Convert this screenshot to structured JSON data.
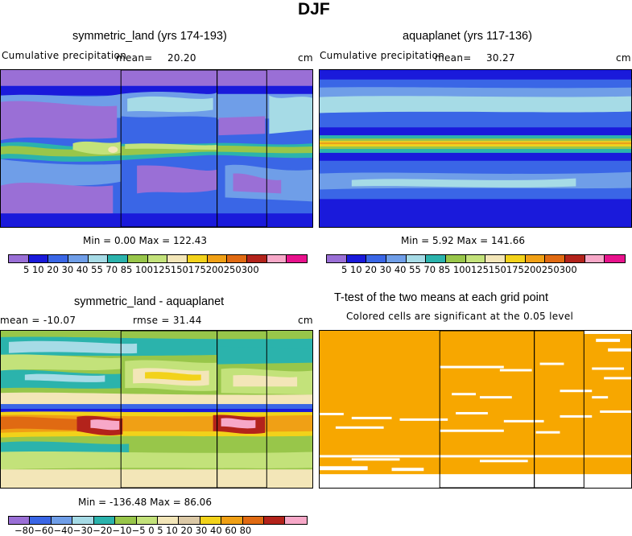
{
  "figure": {
    "title": "DJF"
  },
  "panels": {
    "p1": {
      "title": "symmetric_land (yrs 174-193)",
      "subtitle_left": "Cumulative precipitation",
      "mean_label": "mean=",
      "mean_value": "20.20",
      "units": "cm",
      "stats": "Min =    0.00  Max = 122.43"
    },
    "p2": {
      "title": "aquaplanet (yrs 117-136)",
      "subtitle_left": "Cumulative precipitation",
      "mean_label": "mean=",
      "mean_value": "30.27",
      "units": "cm",
      "stats": "Min =    5.92  Max = 141.66"
    },
    "p3": {
      "title": "symmetric_land - aquaplanet",
      "mean_text": "mean = -10.07",
      "rmse_text": "rmse =  31.44",
      "units": "cm",
      "stats": "Min = -136.48  Max =   86.06"
    },
    "p4": {
      "title": "T-test of the two means at each grid point",
      "subtitle": "Colored cells are significant at the 0.05 level"
    }
  },
  "colorbars": {
    "precip_ticks": "5  10  20  30  40  55  70  85 100125150175200250300",
    "diff_ticks": "−80−60−40−30−20−10−5   0   5  10  20  30  40  60  80",
    "precip_colors": [
      "#9a6fd6",
      "#1a1adb",
      "#3a66e6",
      "#6f9ee8",
      "#a6dbe6",
      "#2bb3ac",
      "#98c64a",
      "#c3e27a",
      "#f3e6b8",
      "#f2d21a",
      "#f0a015",
      "#e06a12",
      "#b3231b",
      "#f7a8c8",
      "#e8128c"
    ],
    "diff_colors": [
      "#9a6fd6",
      "#3a66e6",
      "#6f9ee8",
      "#a6dbe6",
      "#2bb3ac",
      "#98c64a",
      "#c3e27a",
      "#f3e6b8",
      "#dcc9a6",
      "#f2d21a",
      "#f0a015",
      "#e06a12",
      "#b3231b",
      "#f7a8c8"
    ]
  },
  "chart_data": [
    {
      "type": "heatmap",
      "title": "symmetric_land (yrs 174-193)",
      "subtitle": "Cumulative precipitation",
      "mean": 20.2,
      "min": 0.0,
      "max": 122.43,
      "units": "cm",
      "contour_levels": [
        5,
        10,
        20,
        30,
        40,
        55,
        70,
        85,
        100,
        125,
        150,
        175,
        200,
        250,
        300
      ]
    },
    {
      "type": "heatmap",
      "title": "aquaplanet (yrs 117-136)",
      "subtitle": "Cumulative precipitation",
      "mean": 30.27,
      "min": 5.92,
      "max": 141.66,
      "units": "cm",
      "contour_levels": [
        5,
        10,
        20,
        30,
        40,
        55,
        70,
        85,
        100,
        125,
        150,
        175,
        200,
        250,
        300
      ]
    },
    {
      "type": "heatmap",
      "title": "symmetric_land - aquaplanet",
      "mean": -10.07,
      "rmse": 31.44,
      "min": -136.48,
      "max": 86.06,
      "units": "cm",
      "contour_levels": [
        -80,
        -60,
        -40,
        -30,
        -20,
        -10,
        -5,
        0,
        5,
        10,
        20,
        30,
        40,
        60,
        80
      ]
    },
    {
      "type": "heatmap",
      "title": "T-test of the two means at each grid point",
      "subtitle": "Colored cells are significant at the 0.05 level",
      "significance_level": 0.05
    }
  ]
}
